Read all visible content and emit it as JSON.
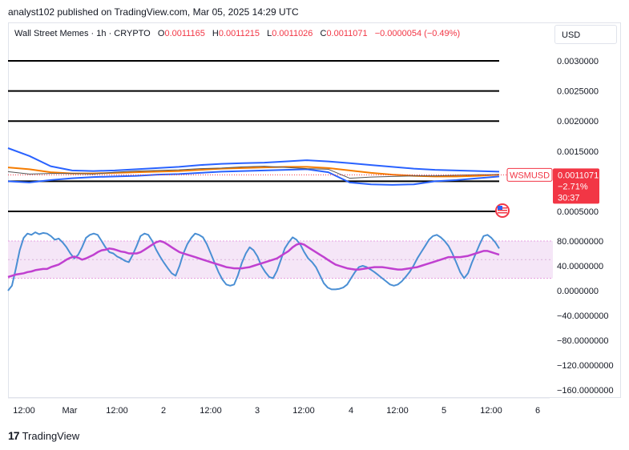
{
  "header": {
    "published": "analyst102 published on TradingView.com, Mar 05, 2025 14:29 UTC"
  },
  "legend": {
    "symbol": "Wall Street Memes · 1h · CRYPTO",
    "o_label": "O",
    "o_value": "0.0011165",
    "h_label": "H",
    "h_value": "0.0011215",
    "l_label": "L",
    "l_value": "0.0011026",
    "c_label": "C",
    "c_value": "0.0011071",
    "change": "−0.0000054 (−0.49%)"
  },
  "currency": "USD",
  "price_tag": {
    "symbol": "WSMUSD",
    "price": "0.0011071",
    "change": "−2.71%",
    "countdown": "30:37"
  },
  "colors": {
    "down": "#f23645",
    "bollinger": "#2962ff",
    "ema": "#f57c00",
    "stoch_k": "#4a8fd4",
    "stoch_d": "#c040d0",
    "band_fill": "#f5e6f7"
  },
  "footer": {
    "brand": "TradingView"
  },
  "chart_data": [
    {
      "type": "line",
      "title": "Wall Street Memes · 1h · CRYPTO",
      "y_ticks": [
        "0.0030000",
        "0.0025000",
        "0.0020000",
        "0.0015000",
        "0.0005000"
      ],
      "ylim": [
        0.0002,
        0.0033
      ],
      "horizontal_lines": [
        0.003,
        0.0025,
        0.002,
        0.001,
        0.0005
      ],
      "x_ticks": [
        "12:00",
        "Mar",
        "12:00",
        "2",
        "12:00",
        "3",
        "12:00",
        "4",
        "12:00",
        "5",
        "12:00",
        "6"
      ],
      "series": [
        {
          "values": [
            0.00155,
            0.00142,
            0.00125,
            0.00118,
            0.00117,
            0.00118,
            0.0012,
            0.00122,
            0.00124,
            0.00127,
            0.00129,
            0.0013,
            0.00131,
            0.00133,
            0.00135,
            0.00133,
            0.0013,
            0.00127,
            0.00124,
            0.00121,
            0.00119,
            0.00118,
            0.00117,
            0.00116
          ]
        },
        {
          "values": [
            0.001,
            0.00098,
            0.00102,
            0.00105,
            0.00107,
            0.00108,
            0.00109,
            0.00111,
            0.00112,
            0.00114,
            0.00116,
            0.00117,
            0.00118,
            0.00119,
            0.0012,
            0.00115,
            0.00098,
            0.00095,
            0.00094,
            0.00095,
            0.001,
            0.00102,
            0.00105,
            0.00108
          ]
        },
        {
          "values": [
            0.00123,
            0.0012,
            0.00115,
            0.00113,
            0.00113,
            0.00114,
            0.00115,
            0.00116,
            0.00117,
            0.00119,
            0.00121,
            0.00122,
            0.00123,
            0.00124,
            0.00124,
            0.00122,
            0.00118,
            0.00114,
            0.00111,
            0.00109,
            0.00108,
            0.00108,
            0.00109,
            0.00111
          ]
        },
        {
          "values": [
            0.00116,
            0.00112,
            0.00113,
            0.00113,
            0.00112,
            0.00115,
            0.00117,
            0.00118,
            0.00119,
            0.00121,
            0.00122,
            0.00124,
            0.00125,
            0.00123,
            0.00121,
            0.0012,
            0.00105,
            0.00107,
            0.00108,
            0.00109,
            0.00109,
            0.0011,
            0.00111,
            0.00111
          ]
        }
      ]
    },
    {
      "type": "line",
      "y_ticks": [
        "80.0000000",
        "40.0000000",
        "0.0000000",
        "−40.0000000",
        "−80.0000000",
        "−120.0000000",
        "−160.0000000"
      ],
      "ylim": [
        -175,
        100
      ],
      "band": [
        20,
        80
      ],
      "series": [
        {
          "values": [
            0,
            8,
            35,
            65,
            85,
            92,
            90,
            94,
            91,
            93,
            92,
            88,
            82,
            84,
            78,
            70,
            60,
            52,
            58,
            70,
            85,
            90,
            92,
            90,
            80,
            70,
            62,
            60,
            55,
            52,
            48,
            46,
            58,
            72,
            88,
            92,
            90,
            80,
            66,
            55,
            45,
            36,
            28,
            24,
            40,
            60,
            75,
            85,
            92,
            90,
            86,
            75,
            60,
            45,
            30,
            18,
            10,
            8,
            10,
            25,
            45,
            60,
            70,
            65,
            55,
            40,
            30,
            22,
            20,
            32,
            50,
            68,
            78,
            86,
            82,
            74,
            62,
            52,
            46,
            38,
            25,
            12,
            5,
            2,
            2,
            3,
            5,
            10,
            20,
            30,
            38,
            40,
            38,
            34,
            30,
            25,
            20,
            15,
            10,
            8,
            10,
            15,
            22,
            30,
            40,
            52,
            62,
            72,
            82,
            88,
            90,
            86,
            80,
            72,
            60,
            45,
            30,
            20,
            28,
            45,
            60,
            75,
            88,
            90,
            85,
            78,
            68
          ]
        },
        {
          "values": [
            22,
            24,
            26,
            27,
            28,
            30,
            31,
            33,
            34,
            35,
            35,
            38,
            40,
            42,
            46,
            50,
            53,
            55,
            53,
            50,
            52,
            55,
            58,
            62,
            65,
            66,
            68,
            67,
            65,
            63,
            62,
            60,
            60,
            60,
            62,
            66,
            70,
            74,
            78,
            80,
            78,
            74,
            70,
            66,
            62,
            60,
            58,
            56,
            54,
            52,
            50,
            48,
            46,
            44,
            42,
            40,
            38,
            37,
            36,
            36,
            36,
            37,
            38,
            40,
            42,
            44,
            46,
            48,
            50,
            52,
            56,
            60,
            64,
            70,
            74,
            76,
            74,
            70,
            66,
            62,
            58,
            54,
            50,
            46,
            42,
            40,
            38,
            36,
            35,
            34,
            34,
            35,
            36,
            37,
            38,
            38,
            38,
            37,
            36,
            35,
            34,
            34,
            35,
            36,
            37,
            38,
            40,
            42,
            44,
            46,
            48,
            50,
            52,
            54,
            54,
            54,
            54,
            55,
            56,
            58,
            60,
            62,
            64,
            64,
            62,
            60,
            58
          ]
        }
      ]
    }
  ]
}
